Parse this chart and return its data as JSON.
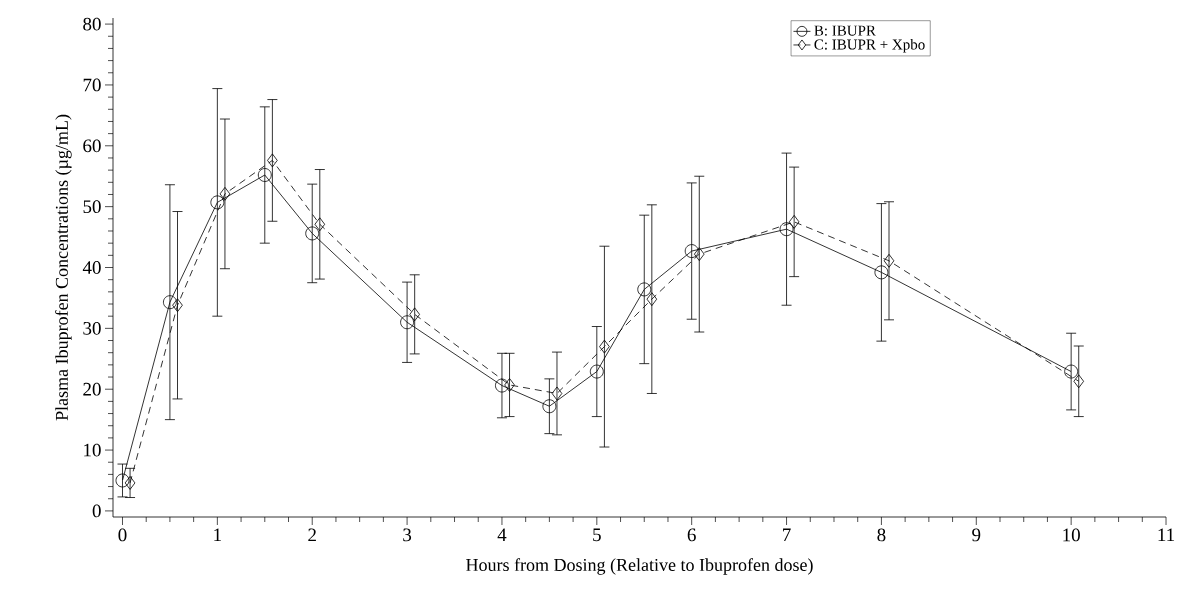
{
  "chart_data": {
    "type": "line",
    "xlabel": "Hours from Dosing (Relative to Ibuprofen dose)",
    "ylabel": "Plasma Ibuprofen Concentrations (µg/mL)",
    "x": [
      0,
      0.5,
      1,
      1.5,
      2,
      3,
      4,
      4.5,
      5,
      5.5,
      6,
      7,
      8,
      10
    ],
    "series": [
      {
        "name": "B: IBUPR",
        "color": "#000000",
        "marker": "circle",
        "line_style": "solid",
        "values": [
          5,
          34.3,
          50.7,
          55.2,
          45.6,
          31,
          20.6,
          17.2,
          22.9,
          36.4,
          42.7,
          46.3,
          39.2,
          22.9
        ],
        "errors": [
          2.7,
          19.3,
          18.7,
          11.2,
          8.1,
          6.6,
          5.3,
          4.5,
          7.4,
          12.2,
          11.2,
          12.5,
          11.3,
          6.3
        ]
      },
      {
        "name": "C: IBUPR + Xpbo",
        "color": "#000000",
        "marker": "diamond",
        "line_style": "dashed",
        "x": [
          0.08,
          0.58,
          1.08,
          1.58,
          2.08,
          3.08,
          4.08,
          4.58,
          5.08,
          5.58,
          6.08,
          7.08,
          8.08,
          10.08
        ],
        "values": [
          4.6,
          33.8,
          52.1,
          57.6,
          47.1,
          32.3,
          20.7,
          19.3,
          27,
          34.8,
          42.2,
          47.5,
          41.1,
          21.3
        ],
        "errors": [
          2.4,
          15.4,
          12.3,
          10,
          9,
          6.5,
          5.2,
          6.8,
          16.5,
          15.5,
          12.8,
          9,
          9.7,
          5.8
        ]
      }
    ],
    "xlim": [
      -0.1,
      11
    ],
    "ylim": [
      -1,
      81
    ],
    "xticks": [
      0,
      1,
      2,
      3,
      4,
      5,
      6,
      7,
      8,
      9,
      10,
      11
    ],
    "yticks": [
      0,
      10,
      20,
      30,
      40,
      50,
      60,
      70,
      80
    ],
    "grid": false,
    "legend": "top right"
  }
}
